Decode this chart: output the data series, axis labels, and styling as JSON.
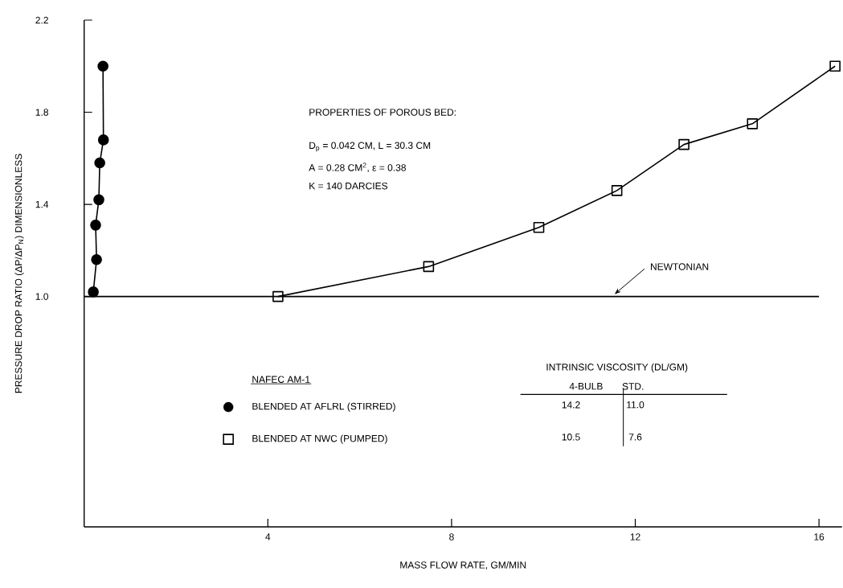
{
  "chart_data": {
    "type": "line",
    "xlabel": "MASS FLOW RATE, GM/MIN",
    "ylabel": "PRESSURE DROP RATIO (ΔP/ΔP$_{N}$) DIMENSIONLESS",
    "legend_title": "NAFEC AM-1",
    "legend": "bottom left",
    "xlim": [
      0,
      16.5
    ],
    "ylim": [
      0,
      2.2
    ],
    "xticks": [
      4,
      8,
      12,
      16
    ],
    "yticks": [
      {
        "value": 1.0,
        "label": "1.0"
      },
      {
        "value": 1.4,
        "label": "1.4"
      },
      {
        "value": 1.8,
        "label": "1.8"
      },
      {
        "value": 2.2,
        "label": "2.2"
      }
    ],
    "series": [
      {
        "name": "BLENDED AT AFLRL (STIRRED)",
        "color": "#000000",
        "marker": "circle",
        "x": [
          0.2,
          0.27,
          0.25,
          0.32,
          0.34,
          0.42,
          0.41
        ],
        "values": [
          1.02,
          1.16,
          1.31,
          1.42,
          1.58,
          1.68,
          2.0
        ]
      },
      {
        "name": "BLENDED AT NWC (PUMPED)",
        "color": "#000000",
        "marker": "square",
        "x": [
          4.22,
          7.5,
          9.9,
          11.6,
          13.06,
          14.55,
          16.35
        ],
        "values": [
          1.0,
          1.13,
          1.3,
          1.46,
          1.66,
          1.75,
          2.0
        ]
      }
    ],
    "ref_lines": [
      {
        "axis": "y",
        "value": 1.0,
        "label": "NEWTONIAN"
      }
    ],
    "annotations": [
      "PROPERTIES OF POROUS BED:",
      "D$_{p}$ = 0.042 CM, L = 30.3 CM",
      "A = 0.28 CM$^{2}$, ε = 0.38",
      "K = 140 DARCIES",
      "INTRINSIC VISCOSITY (DL/GM)",
      "4-BULB",
      "STD.",
      "14.2",
      "11.0",
      "10.5",
      "7.6"
    ]
  }
}
